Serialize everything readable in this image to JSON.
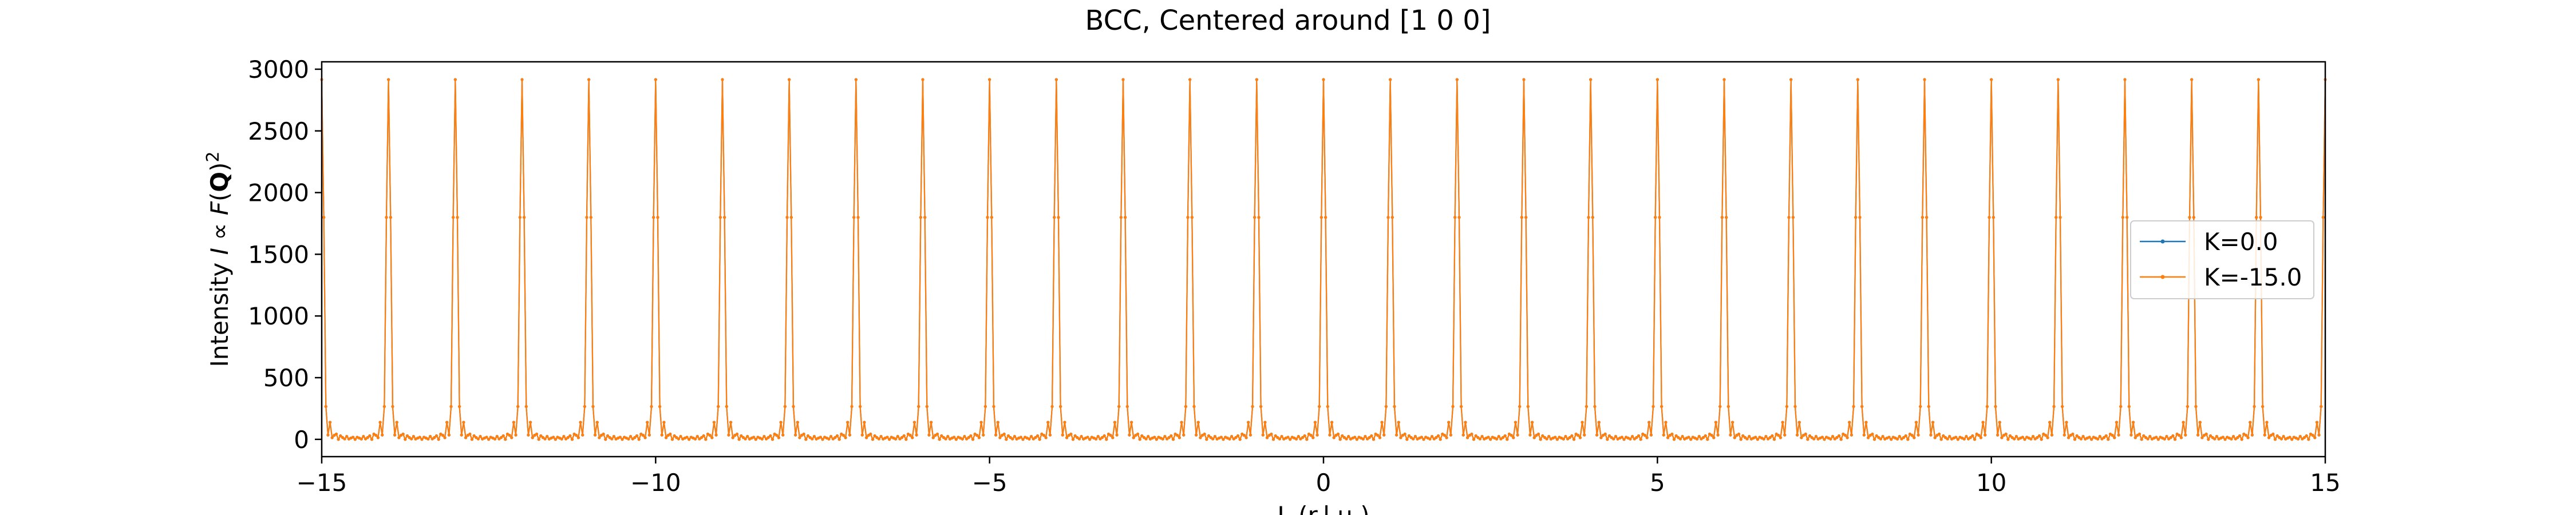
{
  "chart_data": {
    "type": "line",
    "title": "BCC, Centered around [1 0 0]",
    "xlabel": "L (r.l.u.)",
    "ylabel_parts": {
      "prefix": "Intensity ",
      "italic_I": "I",
      "propto": " ∝ ",
      "italic_F": "F",
      "open_paren": "(",
      "bold_Q": "Q",
      "close_paren": ")",
      "superscript": "2"
    },
    "xlim": [
      -15,
      15
    ],
    "ylim": [
      -140,
      3060
    ],
    "xticks": [
      -15,
      -10,
      -5,
      0,
      5,
      10,
      15
    ],
    "xtick_labels": [
      "−15",
      "−10",
      "−5",
      "0",
      "5",
      "10",
      "15"
    ],
    "yticks": [
      0,
      500,
      1000,
      1500,
      2000,
      2500,
      3000
    ],
    "ytick_labels": [
      "0",
      "500",
      "1000",
      "1500",
      "2000",
      "2500",
      "3000"
    ],
    "grid": false,
    "legend": {
      "placement": "center-right"
    },
    "peak_intensity": 2916,
    "side_lobe_intensity": 80,
    "series": [
      {
        "name": "K=0.0",
        "color": "#1f77b4",
        "peak_positions": [
          -15,
          -13,
          -11,
          -9,
          -7,
          -5,
          -3,
          -1,
          1,
          3,
          5,
          7,
          9,
          11,
          13,
          15
        ]
      },
      {
        "name": "K=-15.0",
        "color": "#ff7f0e",
        "peak_positions": [
          -14,
          -12,
          -10,
          -8,
          -6,
          -4,
          -2,
          0,
          2,
          4,
          6,
          8,
          10,
          12,
          14
        ]
      }
    ]
  }
}
